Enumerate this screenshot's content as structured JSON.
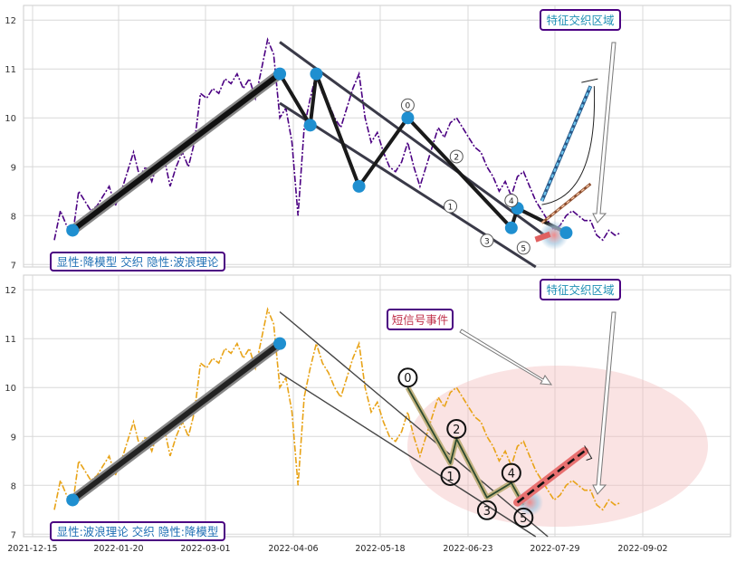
{
  "chart_data": {
    "type": "line",
    "x_ticks": [
      "2021-12-15",
      "2022-01-20",
      "2022-03-01",
      "2022-04-06",
      "2022-05-18",
      "2022-06-23",
      "2022-07-29",
      "2022-09-02"
    ],
    "x_range": [
      "2021-12-10",
      "2022-09-30"
    ],
    "y_ticks": [
      7,
      8,
      9,
      10,
      11,
      12
    ],
    "ylim": [
      6.95,
      12.3
    ],
    "grid": true,
    "panels": [
      {
        "label": "显性:降模型 交织 隐性:波浪理论",
        "annotation": "特征交织区域",
        "line_color": "#4b0082",
        "series_values": [
          7.5,
          8.1,
          7.8,
          7.6,
          8.5,
          8.3,
          8.1,
          8.2,
          8.4,
          8.6,
          8.2,
          8.5,
          8.9,
          9.3,
          8.8,
          9.0,
          8.7,
          9.1,
          9.2,
          8.6,
          9.0,
          9.3,
          9.0,
          9.5,
          10.5,
          10.4,
          10.6,
          10.5,
          10.8,
          10.7,
          10.9,
          10.6,
          10.8,
          10.4,
          11.0,
          11.6,
          11.3,
          10.0,
          10.2,
          9.5,
          8.0,
          9.8,
          10.4,
          10.9,
          10.5,
          10.3,
          10.0,
          9.8,
          10.2,
          10.6,
          10.9,
          10.0,
          9.5,
          9.7,
          9.3,
          9.0,
          8.9,
          9.1,
          9.5,
          9.0,
          8.6,
          9.0,
          9.4,
          9.8,
          9.6,
          9.9,
          10.0,
          9.8,
          9.6,
          9.4,
          9.3,
          9.0,
          8.8,
          8.5,
          8.7,
          8.4,
          8.8,
          8.9,
          8.6,
          8.3,
          8.1,
          7.9,
          7.7,
          7.8,
          8.0,
          8.1,
          8.0,
          7.9,
          7.9,
          7.6,
          7.5,
          7.7,
          7.6,
          7.65
        ],
        "pivots": [
          {
            "x": 3,
            "y": 7.7
          },
          {
            "x": 37,
            "y": 10.9
          },
          {
            "x": 42,
            "y": 9.85
          },
          {
            "x": 43,
            "y": 10.9
          },
          {
            "x": 50,
            "y": 8.6
          },
          {
            "x": 58,
            "y": 10.0
          },
          {
            "x": 75,
            "y": 7.75
          },
          {
            "x": 76,
            "y": 8.15
          },
          {
            "x": 84,
            "y": 7.65
          }
        ],
        "wave": [
          {
            "label": "0",
            "x": 58,
            "y": 10.0
          },
          {
            "label": "1",
            "x": 65,
            "y": 8.45
          },
          {
            "label": "2",
            "x": 66,
            "y": 8.95
          },
          {
            "label": "3",
            "x": 71,
            "y": 7.75
          },
          {
            "label": "4",
            "x": 75,
            "y": 8.05
          },
          {
            "label": "5",
            "x": 77,
            "y": 7.6
          }
        ],
        "channel_upper": [
          [
            37,
            11.55
          ],
          [
            81,
            7.55
          ]
        ],
        "channel_lower": [
          [
            37,
            10.3
          ],
          [
            79,
            6.95
          ]
        ],
        "projection_up": [
          [
            80,
            8.3
          ],
          [
            88,
            10.65
          ]
        ],
        "projection_mid": [
          [
            80,
            7.85
          ],
          [
            88,
            8.65
          ]
        ]
      },
      {
        "label": "显性:波浪理论 交织 隐性:降模型",
        "annotation": "特征交织区域",
        "annotation_2": "短信号事件",
        "line_color": "#e8a317",
        "series_values": [
          7.5,
          8.1,
          7.8,
          7.6,
          8.5,
          8.3,
          8.1,
          8.2,
          8.4,
          8.6,
          8.2,
          8.5,
          8.9,
          9.3,
          8.8,
          9.0,
          8.7,
          9.1,
          9.2,
          8.6,
          9.0,
          9.3,
          9.0,
          9.5,
          10.5,
          10.4,
          10.6,
          10.5,
          10.8,
          10.7,
          10.9,
          10.6,
          10.8,
          10.4,
          11.0,
          11.6,
          11.3,
          10.0,
          10.2,
          9.5,
          8.0,
          9.8,
          10.4,
          10.9,
          10.5,
          10.3,
          10.0,
          9.8,
          10.2,
          10.6,
          10.9,
          10.0,
          9.5,
          9.7,
          9.3,
          9.0,
          8.9,
          9.1,
          9.5,
          9.0,
          8.6,
          9.0,
          9.4,
          9.8,
          9.6,
          9.9,
          10.0,
          9.8,
          9.6,
          9.4,
          9.3,
          9.0,
          8.8,
          8.5,
          8.7,
          8.4,
          8.8,
          8.9,
          8.6,
          8.3,
          8.1,
          7.9,
          7.7,
          7.8,
          8.0,
          8.1,
          8.0,
          7.9,
          7.9,
          7.6,
          7.5,
          7.7,
          7.6,
          7.65
        ],
        "pivots": [
          {
            "x": 3,
            "y": 7.7
          },
          {
            "x": 37,
            "y": 10.9
          }
        ],
        "wave": [
          {
            "label": "0",
            "x": 58,
            "y": 10.0
          },
          {
            "label": "1",
            "x": 65,
            "y": 8.45
          },
          {
            "label": "2",
            "x": 66,
            "y": 8.95
          },
          {
            "label": "3",
            "x": 71,
            "y": 7.75
          },
          {
            "label": "4",
            "x": 75,
            "y": 8.05
          },
          {
            "label": "5",
            "x": 77,
            "y": 7.6
          }
        ],
        "channel_upper": [
          [
            37,
            11.55
          ],
          [
            81,
            6.95
          ]
        ],
        "channel_lower": [
          [
            37,
            10.3
          ],
          [
            79,
            6.95
          ]
        ],
        "projection_up": [
          [
            76,
            7.65
          ],
          [
            87,
            8.7
          ]
        ]
      }
    ]
  }
}
